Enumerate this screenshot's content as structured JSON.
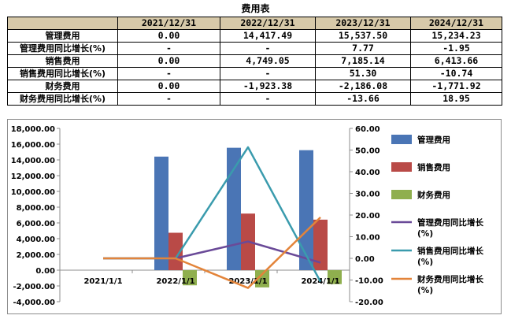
{
  "table": {
    "title": "费用表",
    "columns": [
      "",
      "2021/12/31",
      "2022/12/31",
      "2023/12/31",
      "2024/12/31"
    ],
    "rows": [
      {
        "label": "管理费用",
        "values": [
          "0.00",
          "14,417.49",
          "15,537.50",
          "15,234.23"
        ]
      },
      {
        "label": "管理费用同比增长(%)",
        "values": [
          "-",
          "-",
          "7.77",
          "-1.95"
        ]
      },
      {
        "label": "销售费用",
        "values": [
          "0.00",
          "4,749.05",
          "7,185.14",
          "6,413.66"
        ]
      },
      {
        "label": "销售费用同比增长(%)",
        "values": [
          "-",
          "-",
          "51.30",
          "-10.74"
        ]
      },
      {
        "label": "财务费用",
        "values": [
          "0.00",
          "-1,923.38",
          "-2,186.08",
          "-1,771.92"
        ]
      },
      {
        "label": "财务费用同比增长(%)",
        "values": [
          "-",
          "-",
          "-13.66",
          "18.95"
        ]
      }
    ]
  },
  "chart_data": {
    "type": "bar",
    "categories": [
      "2021/1/1",
      "2022/1/1",
      "2023/1/1",
      "2024/1/1"
    ],
    "series": [
      {
        "name": "管理费用",
        "kind": "bar",
        "axis": "left",
        "color": "#4a75b5",
        "values": [
          0.0,
          14417.49,
          15537.5,
          15234.23
        ]
      },
      {
        "name": "销售费用",
        "kind": "bar",
        "axis": "left",
        "color": "#b94a47",
        "values": [
          0.0,
          4749.05,
          7185.14,
          6413.66
        ]
      },
      {
        "name": "财务费用",
        "kind": "bar",
        "axis": "left",
        "color": "#8faf4e",
        "values": [
          0.0,
          -1923.38,
          -2186.08,
          -1771.92
        ]
      },
      {
        "name": "管理费用同比增长(%)",
        "legend_lines": [
          "管理费用同比增长",
          "(%)"
        ],
        "kind": "line",
        "axis": "right",
        "color": "#6a4a98",
        "values": [
          0,
          0,
          7.77,
          -1.95
        ]
      },
      {
        "name": "销售费用同比增长(%)",
        "legend_lines": [
          "销售费用同比增长",
          "(%)"
        ],
        "kind": "line",
        "axis": "right",
        "color": "#3a9bad",
        "values": [
          0,
          0,
          51.3,
          -10.74
        ]
      },
      {
        "name": "财务费用同比增长(%)",
        "legend_lines": [
          "财务费用同比增长",
          "(%)"
        ],
        "kind": "line",
        "axis": "right",
        "color": "#e3843a",
        "values": [
          0,
          0,
          -13.66,
          18.95
        ]
      }
    ],
    "y_left": {
      "min": -4000,
      "max": 18000,
      "step": 2000,
      "ticks": [
        "-4,000.00",
        "-2,000.00",
        "0.00",
        "2,000.00",
        "4,000.00",
        "6,000.00",
        "8,000.00",
        "10,000.00",
        "12,000.00",
        "14,000.00",
        "16,000.00",
        "18,000.00"
      ]
    },
    "y_right": {
      "min": -20,
      "max": 60,
      "step": 10,
      "ticks": [
        "-20.00",
        "-10.00",
        "0.00",
        "10.00",
        "20.00",
        "30.00",
        "40.00",
        "50.00",
        "60.00"
      ]
    },
    "grid": false,
    "legend_position": "right"
  }
}
